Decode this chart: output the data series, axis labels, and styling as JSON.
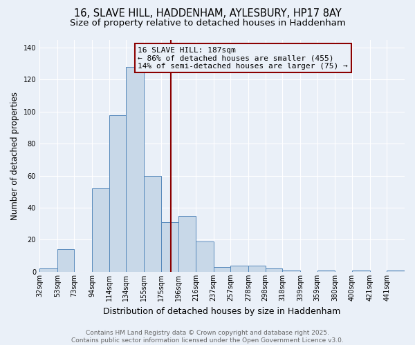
{
  "title_line1": "16, SLAVE HILL, HADDENHAM, AYLESBURY, HP17 8AY",
  "title_line2": "Size of property relative to detached houses in Haddenham",
  "xlabel": "Distribution of detached houses by size in Haddenham",
  "ylabel": "Number of detached properties",
  "bin_labels": [
    "32sqm",
    "53sqm",
    "73sqm",
    "94sqm",
    "114sqm",
    "134sqm",
    "155sqm",
    "175sqm",
    "196sqm",
    "216sqm",
    "237sqm",
    "257sqm",
    "278sqm",
    "298sqm",
    "318sqm",
    "339sqm",
    "359sqm",
    "380sqm",
    "400sqm",
    "421sqm",
    "441sqm"
  ],
  "bin_edges": [
    32,
    53,
    73,
    94,
    114,
    134,
    155,
    175,
    196,
    216,
    237,
    257,
    278,
    298,
    318,
    339,
    359,
    380,
    400,
    421,
    441,
    462
  ],
  "bar_heights": [
    2,
    14,
    0,
    52,
    98,
    128,
    60,
    31,
    35,
    19,
    3,
    4,
    4,
    2,
    1,
    0,
    1,
    0,
    1,
    0,
    1
  ],
  "bar_color": "#c8d8e8",
  "bar_edge_color": "#5588bb",
  "vline_x": 187,
  "vline_color": "#8B0000",
  "annotation_line1": "16 SLAVE HILL: 187sqm",
  "annotation_line2": "← 86% of detached houses are smaller (455)",
  "annotation_line3": "14% of semi-detached houses are larger (75) →",
  "annotation_box_color": "#8B0000",
  "ylim": [
    0,
    145
  ],
  "yticks": [
    0,
    20,
    40,
    60,
    80,
    100,
    120,
    140
  ],
  "background_color": "#eaf0f8",
  "footer_text": "Contains HM Land Registry data © Crown copyright and database right 2025.\nContains public sector information licensed under the Open Government Licence v3.0.",
  "title_fontsize": 10.5,
  "subtitle_fontsize": 9.5,
  "xlabel_fontsize": 9,
  "ylabel_fontsize": 8.5,
  "tick_fontsize": 7,
  "annotation_fontsize": 8,
  "footer_fontsize": 6.5
}
